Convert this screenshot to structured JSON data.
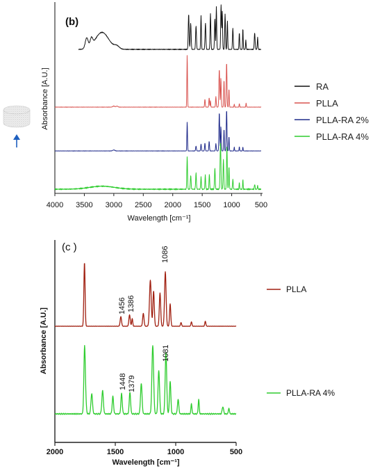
{
  "chart_data": [
    {
      "type": "line",
      "panel_label": "(b)",
      "xlabel": "Wavelength [cm⁻¹]",
      "ylabel": "Absorbance [A.U.]",
      "xlim": [
        4000,
        500
      ],
      "x_ticks": [
        "4000",
        "3500",
        "3000",
        "2500",
        "2000",
        "1500",
        "1000",
        "500"
      ],
      "legend_position": "right",
      "series": [
        {
          "name": "RA",
          "color": "#111111"
        },
        {
          "name": "PLLA",
          "color": "#d9534f"
        },
        {
          "name": "PLLA-RA 2%",
          "color": "#1f2a8a"
        },
        {
          "name": "PLLA-RA 4%",
          "color": "#2ecc2e"
        }
      ]
    },
    {
      "type": "line",
      "panel_label": "(c )",
      "xlabel": "Wavelength [cm⁻¹]",
      "ylabel": "Absorbance [A.U.]",
      "xlim": [
        2000,
        500
      ],
      "x_ticks": [
        "2000",
        "1500",
        "1000",
        "500"
      ],
      "legend_position": "right",
      "series": [
        {
          "name": "PLLA",
          "color": "#a01f10",
          "peak_labels": [
            "1456",
            "1386",
            "1086"
          ]
        },
        {
          "name": "PLLA-RA 4%",
          "color": "#2ecc2e",
          "peak_labels": [
            "1448",
            "1379",
            "1081"
          ]
        }
      ]
    }
  ],
  "icons": {
    "sample": "porous-disc-icon",
    "arrow": "up-arrow-icon",
    "arrow_color": "#1e5fbf"
  }
}
